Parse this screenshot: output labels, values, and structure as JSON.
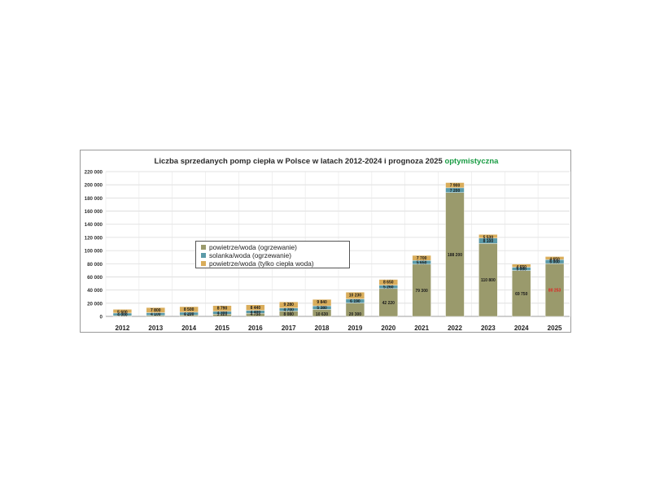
{
  "title": {
    "main": "Liczba sprzedanych pomp ciepła w Polsce w latach 2012-2024 i  prognoza 2025 ",
    "accent": "optymistyczna"
  },
  "colors": {
    "powietrze_woda": "#9a9a6c",
    "solanka_woda": "#5b9aa8",
    "cwu": "#d9ad5b",
    "accent": "#1a9c44",
    "forecast_label": "#e02020"
  },
  "chart_data": {
    "type": "bar",
    "stacked": true,
    "title": "Liczba sprzedanych pomp ciepła w Polsce w latach 2012-2024 i  prognoza 2025 optymistyczna",
    "categories": [
      "2012",
      "2013",
      "2014",
      "2015",
      "2016",
      "2017",
      "2018",
      "2019",
      "2020",
      "2021",
      "2022",
      "2023",
      "2024",
      "2025"
    ],
    "series": [
      {
        "name": "powietrze/woda (ogrzewanie)",
        "color": "#9a9a6c",
        "values": [
          1060,
          1520,
          2110,
          3320,
          4730,
          8080,
          10630,
          20300,
          42220,
          79300,
          188200,
          110800,
          69750,
          80253
        ],
        "labels": [
          "1 060",
          "1 520",
          "2 110",
          "3 320",
          "4 730",
          "8 080",
          "10 630",
          "20 300",
          "42 220",
          "79 300",
          "188 200",
          "110 800",
          "69 750",
          "80 253"
        ]
      },
      {
        "name": "solanka/woda (ogrzewanie)",
        "color": "#5b9aa8",
        "values": [
          4000,
          4100,
          4200,
          4300,
          4400,
          4700,
          5380,
          6190,
          5260,
          5650,
          7200,
          8100,
          5000,
          6000
        ],
        "labels": [
          "4 000",
          "4 100",
          "4 200",
          "4 300",
          "4 400",
          "4 700",
          "5 380",
          "6 190",
          "5 260",
          "5 650",
          "7 200",
          "8 100",
          "5 000",
          "6 000"
        ]
      },
      {
        "name": "powietrze/woda (tylko ciepła woda)",
        "color": "#d9ad5b",
        "values": [
          5600,
          7800,
          8500,
          8790,
          8440,
          9280,
          9840,
          10230,
          8650,
          7700,
          7900,
          5530,
          4650,
          4650
        ],
        "labels": [
          "5 600",
          "7 800",
          "8 500",
          "8 790",
          "8 440",
          "9 280",
          "9 840",
          "10 230",
          "8 650",
          "7 700",
          "7 900",
          "5 530",
          "4 650",
          "4 650"
        ]
      }
    ],
    "y_ticks": [
      "0",
      "20 000",
      "40 000",
      "60 000",
      "80 000",
      "100 000",
      "120 000",
      "140 000",
      "160 000",
      "180 000",
      "200 000",
      "220 000"
    ],
    "ylim": [
      0,
      220000
    ],
    "grid": true,
    "legend": "center-left, inside plot"
  }
}
